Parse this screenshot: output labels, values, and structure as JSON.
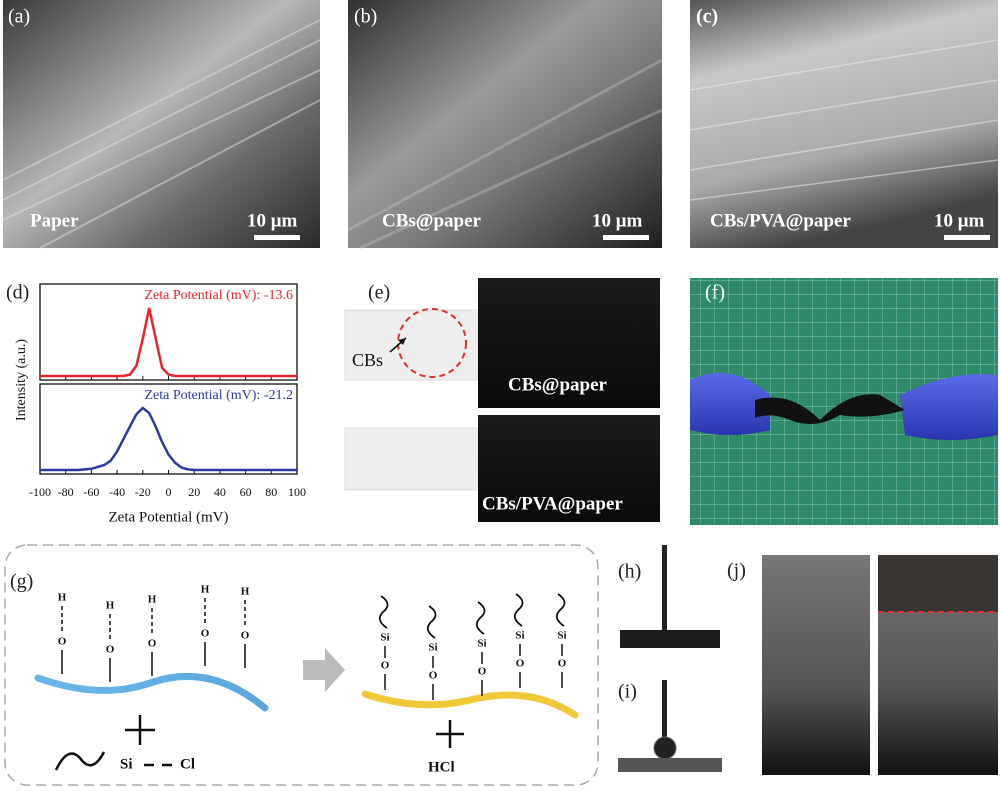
{
  "panels": {
    "a": {
      "label": "(a)",
      "caption": "Paper",
      "scale": "10 μm"
    },
    "b": {
      "label": "(b)",
      "caption": "CBs@paper",
      "scale": "10 μm"
    },
    "c": {
      "label": "(c)",
      "caption": "CBs/PVA@paper",
      "scale": "10 μm"
    },
    "d": {
      "label": "(d)"
    },
    "e": {
      "label": "(e)",
      "pointer": "CBs",
      "top_caption": "CBs@paper",
      "bottom_caption": "CBs/PVA@paper"
    },
    "f": {
      "label": "(f)"
    },
    "g": {
      "label": "(g)",
      "left_groups": [
        {
          "h": "H",
          "o": "O"
        },
        {
          "h": "H",
          "o": "O"
        },
        {
          "h": "H",
          "o": "O"
        },
        {
          "h": "H",
          "o": "O"
        },
        {
          "h": "H",
          "o": "O"
        }
      ],
      "right_groups": [
        {
          "si": "Si",
          "o": "O"
        },
        {
          "si": "Si",
          "o": "O"
        },
        {
          "si": "Si",
          "o": "O"
        },
        {
          "si": "Si",
          "o": "O"
        },
        {
          "si": "Si",
          "o": "O"
        }
      ],
      "reagent_left": "Si",
      "reagent_right": "Cl",
      "product": "HCl"
    },
    "h": {
      "label": "(h)"
    },
    "i": {
      "label": "(i)"
    },
    "j": {
      "label": "(j)"
    }
  },
  "chart_data": {
    "type": "line",
    "x": [
      -100,
      -90,
      -80,
      -70,
      -60,
      -55,
      -50,
      -45,
      -40,
      -35,
      -30,
      -25,
      -20,
      -15,
      -10,
      -5,
      0,
      5,
      10,
      15,
      20,
      30,
      40,
      50,
      60,
      70,
      80,
      90,
      100
    ],
    "series": [
      {
        "name": "Zeta Potential (mV): -13.6",
        "color": "#e8242a",
        "values": [
          0,
          0,
          0,
          0,
          0,
          0,
          0,
          0,
          0,
          0,
          0.02,
          0.15,
          0.55,
          1.0,
          0.55,
          0.12,
          0.02,
          0,
          0,
          0,
          0,
          0,
          0,
          0,
          0,
          0,
          0,
          0,
          0
        ]
      },
      {
        "name": "Zeta Potential (mV): -21.2",
        "color": "#2b3a9e",
        "values": [
          0,
          0,
          0,
          0,
          0.02,
          0.05,
          0.08,
          0.15,
          0.3,
          0.5,
          0.7,
          0.9,
          1.0,
          0.92,
          0.7,
          0.45,
          0.25,
          0.12,
          0.04,
          0.01,
          0,
          0,
          0,
          0,
          0,
          0,
          0,
          0,
          0
        ]
      }
    ],
    "xlim": [
      -100,
      100
    ],
    "ylim": [
      0,
      1
    ],
    "xticks": [
      -100,
      -80,
      -60,
      -40,
      -20,
      0,
      20,
      40,
      60,
      80,
      100
    ],
    "xlabel": "Zeta Potential  (mV)",
    "ylabel": "Intensity (a.u.)"
  }
}
